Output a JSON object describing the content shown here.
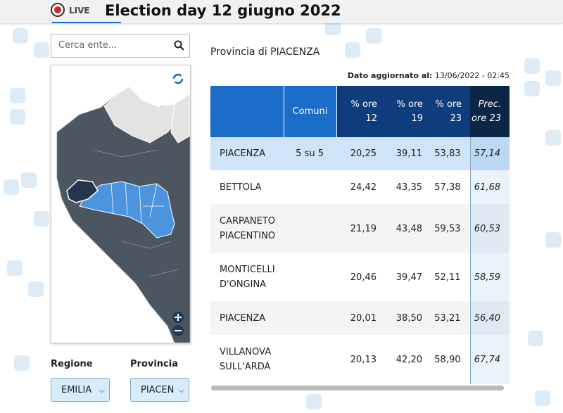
{
  "header": {
    "live": "LIVE",
    "title": "Election day 12 giugno 2022"
  },
  "search": {
    "placeholder": "Cerca ente..."
  },
  "filters": [
    {
      "label": "Regione",
      "value": "EMILIA"
    },
    {
      "label": "Provincia",
      "value": "PIACEN"
    }
  ],
  "table": {
    "title": "Provincia di PIACENZA",
    "updated_label": "Dato aggiornato al:",
    "updated_value": "13/06/2022 - 02:45",
    "columns": [
      "Comuni",
      "% ore 12",
      "% ore 19",
      "% ore 23",
      "Prec. ore 23"
    ],
    "rows": [
      {
        "name": "PIACENZA",
        "comuni": "5 su 5",
        "values": [
          "20,25",
          "39,11",
          "53,83",
          "57,14"
        ]
      },
      {
        "name": "BETTOLA",
        "values": [
          "24,42",
          "43,35",
          "57,38",
          "61,68"
        ]
      },
      {
        "name": "CARPANETO PIACENTINO",
        "values": [
          "21,19",
          "43,48",
          "59,53",
          "60,53"
        ]
      },
      {
        "name": "MONTICELLI D'ONGINA",
        "values": [
          "20,46",
          "39,47",
          "52,11",
          "58,59"
        ]
      },
      {
        "name": "PIACENZA",
        "values": [
          "20,01",
          "38,50",
          "53,21",
          "56,40"
        ]
      },
      {
        "name": "VILLANOVA SULL'ARDA",
        "values": [
          "20,13",
          "42,20",
          "58,90",
          "67,74"
        ]
      }
    ]
  }
}
